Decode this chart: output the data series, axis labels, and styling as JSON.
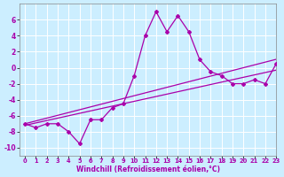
{
  "xlabel": "Windchill (Refroidissement éolien,°C)",
  "x": [
    0,
    1,
    2,
    3,
    4,
    5,
    6,
    7,
    8,
    9,
    10,
    11,
    12,
    13,
    14,
    15,
    16,
    17,
    18,
    19,
    20,
    21,
    22,
    23
  ],
  "y_main": [
    -7,
    -7.5,
    -7,
    -7,
    -8,
    -9.5,
    -6.5,
    -6.5,
    -5,
    -4.5,
    -1,
    4,
    7,
    4.5,
    6.5,
    4.5,
    1,
    -0.5,
    -1,
    -2,
    -2,
    -1.5,
    -2,
    0.5
  ],
  "y_linear1": [
    -7.2,
    -6.9,
    -6.6,
    -6.3,
    -6.0,
    -5.7,
    -5.4,
    -5.1,
    -4.8,
    -4.5,
    -4.2,
    -3.9,
    -3.6,
    -3.3,
    -3.0,
    -2.7,
    -2.4,
    -2.1,
    -1.8,
    -1.5,
    -1.2,
    -0.9,
    -0.6,
    -0.3
  ],
  "y_linear2": [
    -7.0,
    -6.65,
    -6.3,
    -5.95,
    -5.6,
    -5.25,
    -4.9,
    -4.55,
    -4.2,
    -3.85,
    -3.5,
    -3.15,
    -2.8,
    -2.45,
    -2.1,
    -1.75,
    -1.4,
    -1.05,
    -0.7,
    -0.35,
    0.0,
    0.35,
    0.7,
    1.05
  ],
  "line_color": "#aa00aa",
  "bg_color": "#cceeff",
  "grid_color": "#ffffff",
  "ylim": [
    -11,
    8
  ],
  "xlim": [
    -0.5,
    23
  ],
  "yticks": [
    -10,
    -8,
    -6,
    -4,
    -2,
    0,
    2,
    4,
    6
  ],
  "xticks": [
    0,
    1,
    2,
    3,
    4,
    5,
    6,
    7,
    8,
    9,
    10,
    11,
    12,
    13,
    14,
    15,
    16,
    17,
    18,
    19,
    20,
    21,
    22,
    23
  ]
}
